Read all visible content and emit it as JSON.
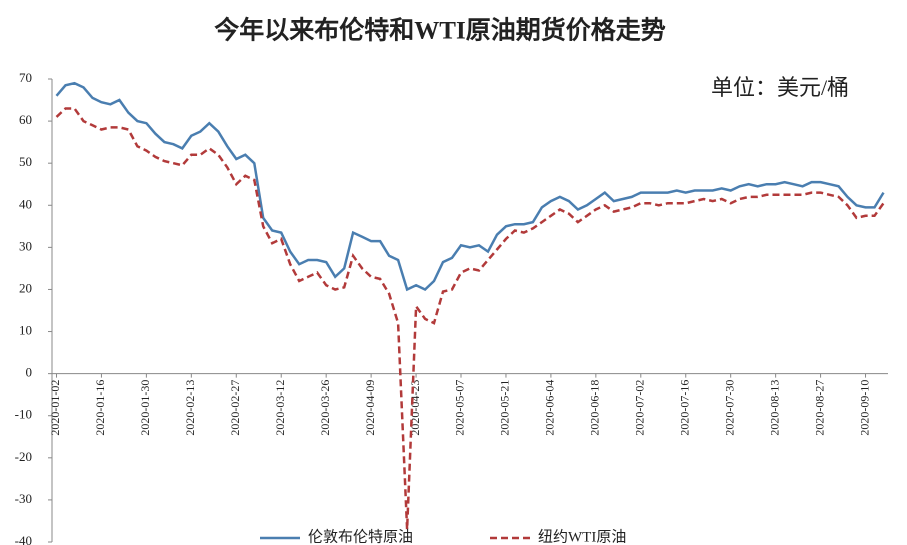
{
  "chart_data": {
    "type": "line",
    "title": "今年以来布伦特和WTI原油期货价格走势",
    "annotation": "单位：美元/桶",
    "categories": [
      "2020-01-02",
      null,
      null,
      null,
      null,
      "2020-01-16",
      null,
      null,
      null,
      null,
      "2020-01-30",
      null,
      null,
      null,
      null,
      "2020-02-13",
      null,
      null,
      null,
      null,
      "2020-02-27",
      null,
      null,
      null,
      null,
      "2020-03-12",
      null,
      null,
      null,
      null,
      "2020-03-26",
      null,
      null,
      null,
      null,
      "2020-04-09",
      null,
      null,
      null,
      null,
      "2020-04-23",
      null,
      null,
      null,
      null,
      "2020-05-07",
      null,
      null,
      null,
      null,
      "2020-05-21",
      null,
      null,
      null,
      null,
      "2020-06-04",
      null,
      null,
      null,
      null,
      "2020-06-18",
      null,
      null,
      null,
      null,
      "2020-07-02",
      null,
      null,
      null,
      null,
      "2020-07-16",
      null,
      null,
      null,
      null,
      "2020-07-30",
      null,
      null,
      null,
      null,
      "2020-08-13",
      null,
      null,
      null,
      null,
      "2020-08-27",
      null,
      null,
      null,
      null,
      "2020-09-10",
      null,
      null
    ],
    "series": [
      {
        "name": "伦敦布伦特原油",
        "color": "#4a7eb0",
        "dash": false,
        "values": [
          66,
          68.5,
          69,
          68,
          65.5,
          64.5,
          64,
          65,
          62,
          60,
          59.5,
          57,
          55,
          54.5,
          53.5,
          56.5,
          57.5,
          59.5,
          57.5,
          54,
          51,
          52,
          50,
          37,
          34,
          33.5,
          29,
          26,
          27,
          27,
          26.5,
          23,
          25,
          33.5,
          32.5,
          31.5,
          31.5,
          28,
          27,
          20,
          21,
          20,
          22,
          26.5,
          27.5,
          30.5,
          30,
          30.5,
          29,
          33,
          35,
          35.5,
          35.5,
          36,
          39.5,
          41,
          42,
          41,
          39,
          40,
          41.5,
          43,
          41,
          41.5,
          42,
          43,
          43,
          43,
          43,
          43.5,
          43,
          43.5,
          43.5,
          43.5,
          44,
          43.5,
          44.5,
          45,
          44.5,
          45,
          45,
          45.5,
          45,
          44.5,
          45.5,
          45.5,
          45,
          44.5,
          42,
          40,
          39.5,
          39.5,
          43
        ]
      },
      {
        "name": "纽约WTI原油",
        "color": "#b23a3a",
        "dash": true,
        "values": [
          61,
          63,
          63,
          60,
          59,
          58,
          58.5,
          58.5,
          58,
          54,
          53,
          51.5,
          50.5,
          50,
          49.5,
          52,
          52,
          53.5,
          52,
          49,
          45,
          47,
          46,
          35,
          31,
          32,
          26,
          22,
          23,
          24,
          21,
          20,
          20.5,
          28,
          25,
          23,
          22.5,
          19,
          12,
          -37,
          16,
          13,
          12,
          19.5,
          20,
          24,
          25,
          24.5,
          27,
          29.5,
          32,
          34,
          33.5,
          34.5,
          36,
          37.5,
          39,
          38,
          36,
          37.5,
          39,
          40,
          38.5,
          39,
          39.5,
          40.5,
          40.5,
          40,
          40.5,
          40.5,
          40.5,
          41,
          41.5,
          41,
          41.5,
          40.5,
          41.5,
          42,
          42,
          42.5,
          42.5,
          42.5,
          42.5,
          42.5,
          43,
          43,
          42.5,
          42,
          40,
          37,
          37.5,
          37.5,
          40.5
        ]
      }
    ],
    "ylim": [
      -40,
      70
    ],
    "yticks": [
      -40,
      -30,
      -20,
      -10,
      0,
      10,
      20,
      30,
      40,
      50,
      60,
      70
    ],
    "grid": false
  }
}
